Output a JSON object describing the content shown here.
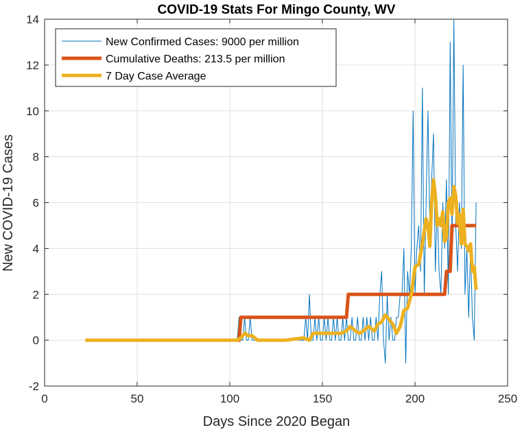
{
  "chart_data": {
    "type": "line",
    "title": "COVID-19 Stats For Mingo County, WV",
    "xlabel": "Days Since 2020 Began",
    "ylabel": "New COVID-19 Cases",
    "xlim": [
      0,
      250
    ],
    "ylim": [
      -2,
      14
    ],
    "xticks": [
      0,
      50,
      100,
      150,
      200,
      250
    ],
    "yticks": [
      -2,
      0,
      2,
      4,
      6,
      8,
      10,
      12,
      14
    ],
    "grid": true,
    "legend_position": "top-left",
    "colors": {
      "new_cases": "#0072BD",
      "deaths": "#D95319",
      "average": "#EDB120",
      "grid": "#dfdfdf",
      "axis": "#262626"
    },
    "series": [
      {
        "name": "New Confirmed Cases: 9000 per million",
        "x": [
          22,
          104,
          105,
          106,
          107,
          108,
          109,
          110,
          111,
          112,
          120,
          130,
          140,
          141,
          142,
          143,
          144,
          145,
          146,
          147,
          148,
          149,
          150,
          151,
          152,
          153,
          154,
          155,
          156,
          157,
          158,
          159,
          160,
          161,
          162,
          163,
          164,
          165,
          166,
          167,
          168,
          169,
          170,
          171,
          172,
          173,
          174,
          175,
          176,
          177,
          178,
          179,
          180,
          181,
          182,
          183,
          184,
          185,
          186,
          187,
          188,
          189,
          190,
          191,
          192,
          193,
          194,
          195,
          196,
          197,
          198,
          199,
          200,
          201,
          202,
          203,
          204,
          205,
          206,
          207,
          208,
          209,
          210,
          211,
          212,
          213,
          214,
          215,
          216,
          217,
          218,
          219,
          220,
          221,
          222,
          223,
          224,
          225,
          226,
          227,
          228,
          229,
          230,
          231,
          232,
          233
        ],
        "y": [
          0,
          0,
          1,
          0,
          0,
          1,
          0,
          0,
          1,
          0,
          0,
          0,
          0,
          1,
          0,
          2,
          0,
          0,
          1,
          0,
          1,
          0,
          0,
          1,
          0,
          1,
          0,
          0,
          1,
          0,
          1,
          0,
          0,
          1,
          0,
          1,
          0,
          0,
          1,
          0,
          0,
          1,
          0,
          0,
          1,
          0,
          1,
          0,
          1,
          0,
          0,
          1,
          0,
          2,
          3,
          0,
          -1,
          2,
          0,
          1,
          0,
          0,
          1,
          1,
          2,
          2,
          4,
          -1,
          3,
          2,
          4,
          10,
          2,
          4,
          5,
          3,
          11,
          2,
          6,
          10,
          5,
          7,
          9,
          3,
          6,
          3,
          2,
          6,
          4,
          7,
          2,
          13,
          4,
          14,
          5,
          3,
          6,
          4,
          12,
          2,
          4,
          1,
          4,
          1,
          0,
          6
        ],
        "unit": "cases"
      },
      {
        "name": "Cumulative Deaths: 213.5 per million",
        "x": [
          104,
          105,
          106,
          163,
          164,
          216,
          217,
          219,
          220,
          233
        ],
        "y": [
          0,
          0,
          1,
          1,
          2,
          2,
          3,
          3,
          5,
          5
        ]
      },
      {
        "name": "7 Day Case Average",
        "x": [
          22,
          104,
          106,
          108,
          110,
          112,
          115,
          120,
          130,
          140,
          143,
          145,
          146,
          150,
          155,
          160,
          163,
          165,
          168,
          170,
          172,
          175,
          178,
          180,
          182,
          184,
          186,
          188,
          190,
          192,
          194,
          196,
          198,
          200,
          202,
          204,
          206,
          207,
          208,
          209,
          210,
          211,
          212,
          213,
          214,
          215,
          216,
          217,
          218,
          219,
          220,
          221,
          222,
          223,
          224,
          225,
          226,
          227,
          228,
          229,
          230,
          231,
          232,
          233
        ],
        "y": [
          0,
          0,
          0.1,
          0.3,
          0.2,
          0.2,
          0,
          0,
          0,
          0.1,
          0,
          0.3,
          0.3,
          0.3,
          0.3,
          0.3,
          0.4,
          0.6,
          0.4,
          0.3,
          0.4,
          0.6,
          0.4,
          0.7,
          0.8,
          1.1,
          0.9,
          0.7,
          0.3,
          0.6,
          1.3,
          1.4,
          2,
          3.2,
          3.3,
          4.2,
          5.3,
          5,
          4.1,
          6,
          7,
          6.3,
          5,
          5.3,
          5,
          5.6,
          4.3,
          4.5,
          6,
          6.2,
          5.5,
          6.7,
          6.3,
          5.1,
          5.5,
          4.2,
          5.7,
          4.2,
          4.1,
          3.9,
          4.2,
          3,
          3.2,
          2.2
        ]
      }
    ]
  }
}
